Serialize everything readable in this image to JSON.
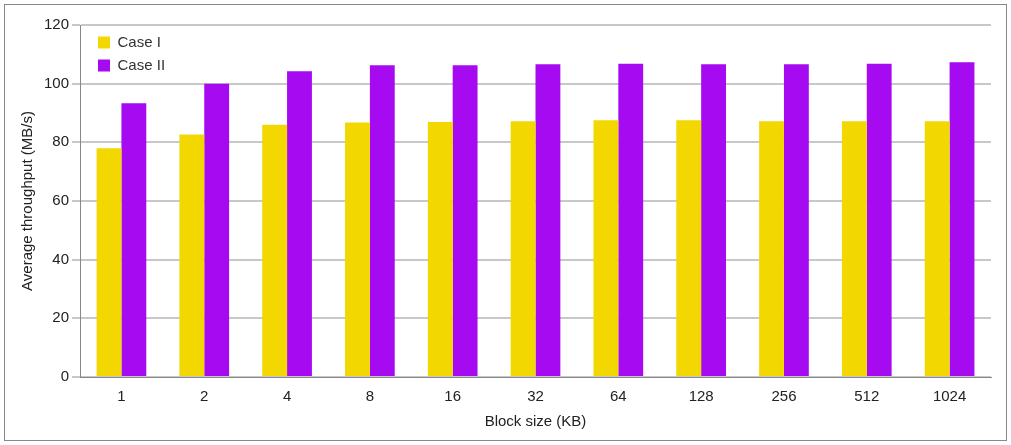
{
  "chart_data": {
    "type": "bar",
    "xlabel": "Block size (KB)",
    "ylabel": "Average throughput (MB/s)",
    "categories": [
      "1",
      "2",
      "4",
      "8",
      "16",
      "32",
      "64",
      "128",
      "256",
      "512",
      "1024"
    ],
    "series": [
      {
        "name": "Case I",
        "color": "#f2d800",
        "values": [
          78,
          82.7,
          86,
          86.8,
          86.9,
          87.2,
          87.5,
          87.5,
          87.2,
          87.2,
          87.2
        ]
      },
      {
        "name": "Case II",
        "color": "#a50af0",
        "values": [
          93.3,
          100,
          104.2,
          106.3,
          106.3,
          106.6,
          106.8,
          106.6,
          106.6,
          106.8,
          107.3
        ]
      }
    ],
    "ylim": [
      0,
      120
    ],
    "yticks": [
      0,
      20,
      40,
      60,
      80,
      100,
      120
    ],
    "grid": "y",
    "legend": "top left"
  }
}
